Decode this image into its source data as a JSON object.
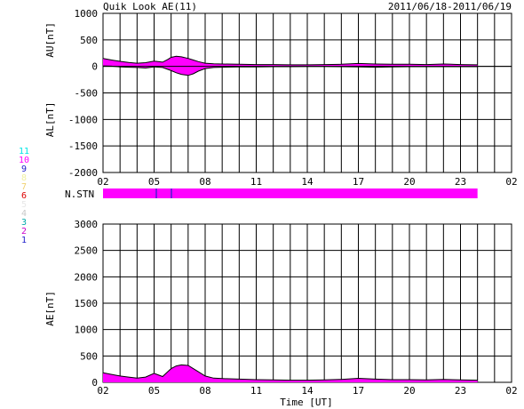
{
  "header": {
    "title": "Quik Look AE(11)",
    "date_range": "2011/06/18-2011/06/19"
  },
  "x_axis": {
    "tick_labels": [
      "02",
      "05",
      "08",
      "11",
      "14",
      "17",
      "20",
      "23",
      "02"
    ],
    "label": "Time [UT]"
  },
  "station_bar": {
    "label": "N.STN",
    "color": "#ff00ff"
  },
  "legend": {
    "items": [
      {
        "label": "11",
        "color": "#00e5e5"
      },
      {
        "label": "10",
        "color": "#ff00ff"
      },
      {
        "label": "9",
        "color": "#2222cc"
      },
      {
        "label": "8",
        "color": "#f0f0a0"
      },
      {
        "label": "7",
        "color": "#f0d070"
      },
      {
        "label": "6",
        "color": "#dd0000"
      },
      {
        "label": "5",
        "color": "#e8e8e8"
      },
      {
        "label": "4",
        "color": "#c8c8c8"
      },
      {
        "label": "3",
        "color": "#00aaaa"
      },
      {
        "label": "2",
        "color": "#cc00cc"
      },
      {
        "label": "1",
        "color": "#2222cc"
      }
    ]
  },
  "chart_data": [
    {
      "type": "area",
      "name": "AU/AL",
      "ylabel_top": "AU[nT]",
      "ylabel_bottom": "AL[nT]",
      "ylim": [
        -2000,
        1000
      ],
      "yticks": [
        1000,
        500,
        0,
        -500,
        -1000,
        -1500,
        -2000
      ],
      "xlim": [
        2,
        26
      ],
      "fill_color": "#ff00ff",
      "line_color": "#000000",
      "upper": {
        "x": [
          2.0,
          2.5,
          3.0,
          3.5,
          4.0,
          4.5,
          5.0,
          5.5,
          5.8,
          6.0,
          6.3,
          6.6,
          7.0,
          7.3,
          7.6,
          8.0,
          8.5,
          9.0,
          10.0,
          11.0,
          12.0,
          13.0,
          14.0,
          15.0,
          16.0,
          17.0,
          18.0,
          19.0,
          20.0,
          21.0,
          22.0,
          23.0,
          24.0
        ],
        "y": [
          150,
          120,
          95,
          75,
          60,
          70,
          100,
          80,
          130,
          170,
          190,
          180,
          150,
          120,
          90,
          60,
          50,
          45,
          40,
          35,
          35,
          30,
          30,
          35,
          40,
          55,
          45,
          40,
          40,
          35,
          45,
          35,
          30
        ]
      },
      "lower": {
        "x": [
          2.0,
          2.5,
          3.0,
          3.5,
          4.0,
          4.5,
          5.0,
          5.5,
          6.0,
          6.3,
          6.6,
          7.0,
          7.3,
          7.6,
          8.0,
          8.5,
          9.0,
          10.0,
          11.0,
          12.0,
          13.0,
          14.0,
          15.0,
          16.0,
          17.0,
          18.0,
          19.0,
          20.0,
          21.0,
          22.0,
          23.0,
          24.0
        ],
        "y": [
          10,
          5,
          -10,
          -15,
          -20,
          -30,
          -10,
          -20,
          -80,
          -120,
          -150,
          -170,
          -140,
          -90,
          -40,
          -20,
          -15,
          -10,
          -10,
          -5,
          -5,
          0,
          0,
          -5,
          -10,
          -15,
          -10,
          -5,
          -5,
          -5,
          -5,
          -5
        ]
      }
    },
    {
      "type": "area",
      "name": "AE",
      "ylabel": "AE[nT]",
      "ylim": [
        0,
        3000
      ],
      "yticks": [
        3000,
        2500,
        2000,
        1500,
        1000,
        500,
        0
      ],
      "xlim": [
        2,
        26
      ],
      "fill_color": "#ff00ff",
      "line_color": "#000000",
      "x": [
        2.0,
        2.5,
        3.0,
        3.5,
        4.0,
        4.5,
        5.0,
        5.5,
        5.8,
        6.0,
        6.3,
        6.6,
        7.0,
        7.3,
        7.6,
        8.0,
        8.5,
        9.0,
        10.0,
        11.0,
        12.0,
        13.0,
        14.0,
        15.0,
        16.0,
        17.0,
        18.0,
        19.0,
        20.0,
        21.0,
        22.0,
        23.0,
        24.0
      ],
      "y": [
        180,
        150,
        120,
        100,
        80,
        100,
        170,
        110,
        200,
        260,
        310,
        330,
        320,
        260,
        200,
        120,
        80,
        70,
        60,
        50,
        45,
        40,
        40,
        45,
        55,
        75,
        60,
        50,
        50,
        45,
        55,
        45,
        40
      ]
    }
  ]
}
